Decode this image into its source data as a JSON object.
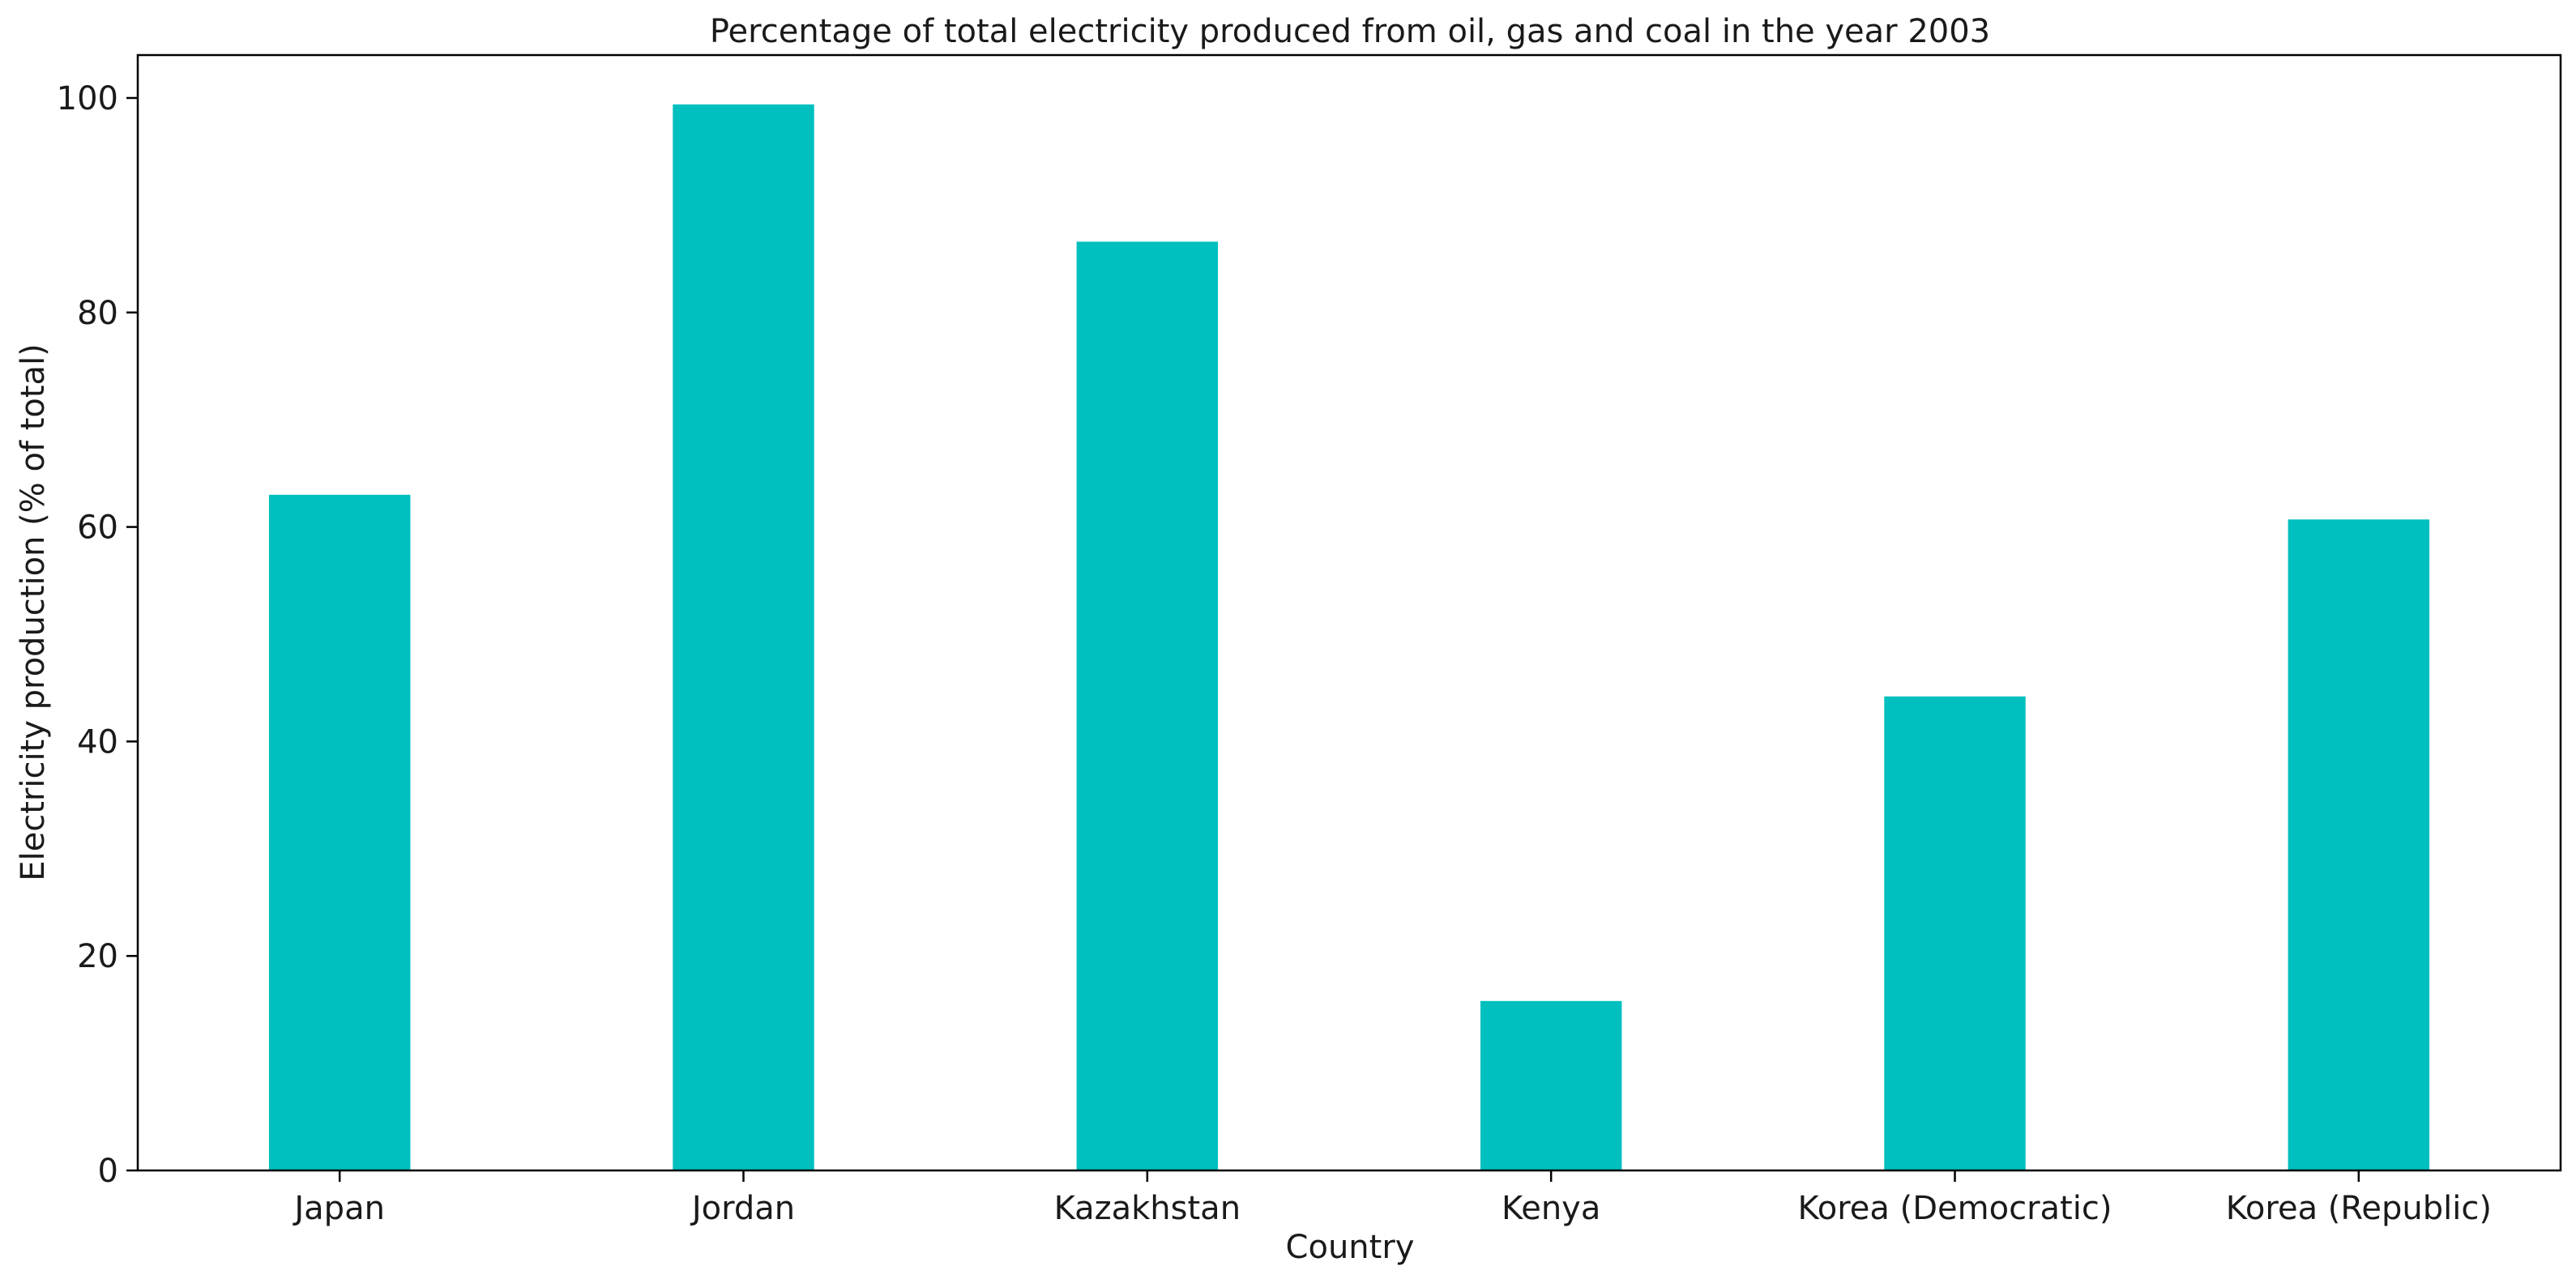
{
  "chart_data": {
    "type": "bar",
    "title": "Percentage of total electricity produced from oil, gas and coal in the year 2003",
    "xlabel": "Country",
    "ylabel": "Electricity production (% of total)",
    "categories": [
      "Japan",
      "Jordan",
      "Kazakhstan",
      "Kenya",
      "Korea (Democratic)",
      "Korea (Republic)"
    ],
    "values": [
      63.0,
      99.4,
      86.6,
      15.8,
      44.2,
      60.7
    ],
    "ylim": [
      0,
      104
    ],
    "yticks": [
      0,
      20,
      40,
      60,
      80,
      100
    ],
    "grid": false,
    "legend": "none",
    "bar_color": "#00BFBF"
  }
}
